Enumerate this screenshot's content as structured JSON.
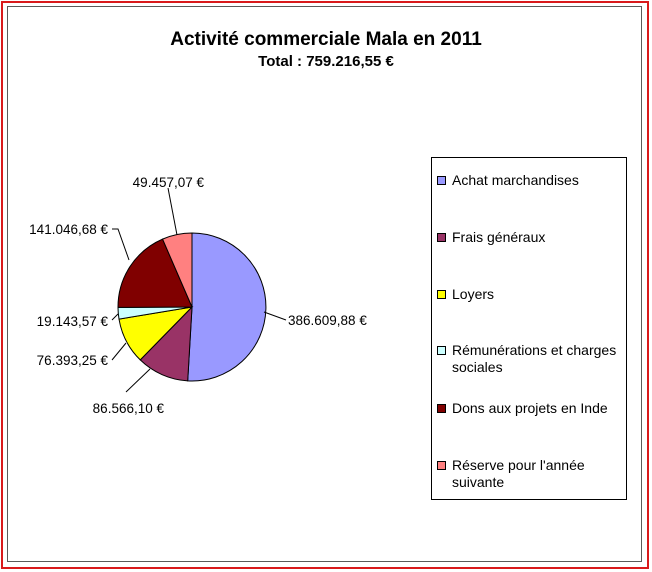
{
  "chart_data": {
    "type": "pie",
    "title": "Activité commerciale Mala en 2011",
    "subtitle": "Total : 759.216,55 €",
    "legend_position": "right",
    "slices": [
      {
        "name": "Achat marchandises",
        "value": 386609.88,
        "label": "386.609,88 €",
        "color": "#9999ff"
      },
      {
        "name": "Frais généraux",
        "value": 86566.1,
        "label": "86.566,10 €",
        "color": "#993366"
      },
      {
        "name": "Loyers",
        "value": 76393.25,
        "label": "76.393,25 €",
        "color": "#ffff00"
      },
      {
        "name": "Rémunérations et charges sociales",
        "value": 19143.57,
        "label": "19.143,57 €",
        "color": "#ccffff"
      },
      {
        "name": "Dons aux projets en Inde",
        "value": 141046.68,
        "label": "141.046,68 €",
        "color": "#800000"
      },
      {
        "name": "Réserve pour l'année suivante",
        "value": 49457.07,
        "label": "49.457,07 €",
        "color": "#ff8080"
      }
    ]
  }
}
